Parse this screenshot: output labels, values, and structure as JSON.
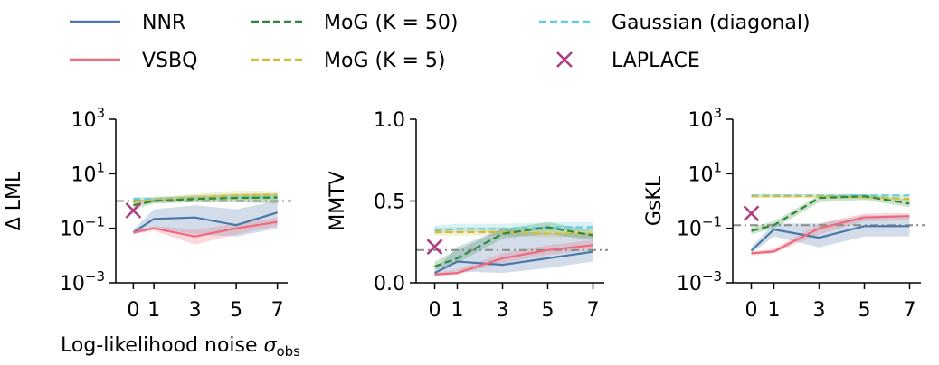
{
  "figure": {
    "xlabel_main": "Log-likelihood noise ",
    "xlabel_sigma": "σ",
    "xlabel_sub": "obs"
  },
  "colors": {
    "NNR": "#4a78a8",
    "VSBQ": "#ee6a7e",
    "MoG50": "#2e8a38",
    "MoG5": "#d0bd3a",
    "Gaussian": "#62cde0",
    "LAPLACE": "#b03c80",
    "reference": "#8a8a8a"
  },
  "legend": [
    {
      "key": "NNR",
      "label": "NNR",
      "style": "solid"
    },
    {
      "key": "VSBQ",
      "label": "VSBQ",
      "style": "solid"
    },
    {
      "key": "MoG50",
      "label": "MoG (K = 50)",
      "style": "dashed"
    },
    {
      "key": "MoG5",
      "label": "MoG (K = 5)",
      "style": "dashed"
    },
    {
      "key": "Gaussian",
      "label": "Gaussian (diagonal)",
      "style": "dashed"
    },
    {
      "key": "LAPLACE",
      "label": "LAPLACE",
      "style": "marker"
    }
  ],
  "chart_data": [
    {
      "type": "line",
      "ylabel": "Δ LML",
      "yscale": "log",
      "ylim": [
        0.001,
        1000
      ],
      "yticks": [
        {
          "v": 0.001,
          "base": "10",
          "exp": "−3"
        },
        {
          "v": 0.1,
          "base": "10",
          "exp": "−1"
        },
        {
          "v": 10,
          "base": "10",
          "exp": "1"
        },
        {
          "v": 1000,
          "base": "10",
          "exp": "3"
        }
      ],
      "xlim": [
        -0.5,
        7.5
      ],
      "xticks": [
        "0",
        "1",
        "3",
        "5",
        "7"
      ],
      "x": [
        0,
        1,
        3,
        5,
        7
      ],
      "reference_line": 1.0,
      "laplace": 0.45,
      "series": [
        {
          "key": "NNR",
          "values": [
            0.07,
            0.22,
            0.25,
            0.13,
            0.38
          ],
          "band_low": [
            0.06,
            0.1,
            0.06,
            0.05,
            0.1
          ],
          "band_high": [
            0.09,
            0.5,
            0.7,
            0.5,
            1.0
          ]
        },
        {
          "key": "VSBQ",
          "values": [
            0.07,
            0.1,
            0.05,
            0.1,
            0.17
          ],
          "band_low": [
            0.06,
            0.08,
            0.025,
            0.06,
            0.12
          ],
          "band_high": [
            0.08,
            0.12,
            0.09,
            0.15,
            0.25
          ]
        },
        {
          "key": "MoG50",
          "values": [
            0.7,
            1.0,
            1.2,
            1.3,
            1.35
          ],
          "band_low": [
            0.5,
            0.8,
            0.9,
            0.9,
            0.8
          ],
          "band_high": [
            1.0,
            1.3,
            1.6,
            1.8,
            1.9
          ]
        },
        {
          "key": "MoG5",
          "values": [
            0.9,
            1.1,
            1.3,
            1.6,
            1.7
          ],
          "band_low": [
            0.7,
            0.9,
            1.0,
            1.1,
            1.1
          ],
          "band_high": [
            1.2,
            1.4,
            1.8,
            2.4,
            2.3
          ]
        },
        {
          "key": "Gaussian",
          "values": [
            1.2,
            1.2,
            1.3,
            1.4,
            1.4
          ],
          "band_low": [
            1.0,
            1.0,
            1.1,
            1.2,
            1.2
          ],
          "band_high": [
            1.4,
            1.4,
            1.5,
            1.6,
            1.6
          ]
        }
      ]
    },
    {
      "type": "line",
      "ylabel": "MMTV",
      "yscale": "linear",
      "ylim": [
        0.0,
        1.0
      ],
      "yticks": [
        {
          "v": 0.0,
          "label": "0.0"
        },
        {
          "v": 0.5,
          "label": "0.5"
        },
        {
          "v": 1.0,
          "label": "1.0"
        }
      ],
      "xlim": [
        -0.5,
        7.5
      ],
      "xticks": [
        "0",
        "1",
        "3",
        "5",
        "7"
      ],
      "x": [
        0,
        1,
        3,
        5,
        7
      ],
      "reference_line": 0.2,
      "laplace": 0.22,
      "series": [
        {
          "key": "NNR",
          "values": [
            0.06,
            0.13,
            0.11,
            0.15,
            0.19
          ],
          "band_low": [
            0.05,
            0.07,
            0.06,
            0.09,
            0.13
          ],
          "band_high": [
            0.08,
            0.22,
            0.33,
            0.3,
            0.3
          ]
        },
        {
          "key": "VSBQ",
          "values": [
            0.05,
            0.06,
            0.15,
            0.2,
            0.23
          ],
          "band_low": [
            0.04,
            0.05,
            0.12,
            0.17,
            0.2
          ],
          "band_high": [
            0.06,
            0.08,
            0.18,
            0.23,
            0.26
          ]
        },
        {
          "key": "MoG50",
          "values": [
            0.1,
            0.15,
            0.3,
            0.34,
            0.29
          ],
          "band_low": [
            0.08,
            0.12,
            0.27,
            0.3,
            0.26
          ],
          "band_high": [
            0.13,
            0.2,
            0.33,
            0.37,
            0.32
          ]
        },
        {
          "key": "MoG5",
          "values": [
            0.31,
            0.31,
            0.31,
            0.3,
            0.3
          ],
          "band_low": [
            0.29,
            0.29,
            0.29,
            0.28,
            0.28
          ],
          "band_high": [
            0.34,
            0.34,
            0.34,
            0.33,
            0.33
          ]
        },
        {
          "key": "Gaussian",
          "values": [
            0.32,
            0.33,
            0.33,
            0.34,
            0.34
          ],
          "band_low": [
            0.3,
            0.31,
            0.31,
            0.32,
            0.32
          ],
          "band_high": [
            0.35,
            0.36,
            0.36,
            0.37,
            0.37
          ]
        }
      ]
    },
    {
      "type": "line",
      "ylabel": "GsKL",
      "yscale": "log",
      "ylim": [
        0.001,
        1000
      ],
      "yticks": [
        {
          "v": 0.001,
          "base": "10",
          "exp": "−3"
        },
        {
          "v": 0.1,
          "base": "10",
          "exp": "−1"
        },
        {
          "v": 10,
          "base": "10",
          "exp": "1"
        },
        {
          "v": 1000,
          "base": "10",
          "exp": "3"
        }
      ],
      "xlim": [
        -0.5,
        7.5
      ],
      "xticks": [
        "0",
        "1",
        "3",
        "5",
        "7"
      ],
      "x": [
        0,
        1,
        3,
        5,
        7
      ],
      "reference_line": 0.13,
      "laplace": 0.35,
      "series": [
        {
          "key": "NNR",
          "values": [
            0.015,
            0.09,
            0.045,
            0.12,
            0.12
          ],
          "band_low": [
            0.012,
            0.05,
            0.02,
            0.05,
            0.05
          ],
          "band_high": [
            0.02,
            0.15,
            0.15,
            0.3,
            0.3
          ]
        },
        {
          "key": "VSBQ",
          "values": [
            0.012,
            0.014,
            0.1,
            0.25,
            0.28
          ],
          "band_low": [
            0.01,
            0.012,
            0.06,
            0.18,
            0.2
          ],
          "band_high": [
            0.014,
            0.018,
            0.15,
            0.35,
            0.36
          ]
        },
        {
          "key": "MoG50",
          "values": [
            0.08,
            0.13,
            1.3,
            1.5,
            0.8
          ],
          "band_low": [
            0.06,
            0.1,
            0.9,
            1.1,
            0.6
          ],
          "band_high": [
            0.11,
            0.18,
            1.6,
            1.8,
            1.1
          ]
        },
        {
          "key": "MoG5",
          "values": [
            1.5,
            1.5,
            1.5,
            1.4,
            1.2
          ],
          "band_low": [
            1.3,
            1.3,
            1.3,
            1.2,
            1.0
          ],
          "band_high": [
            1.7,
            1.7,
            1.7,
            1.6,
            1.4
          ]
        },
        {
          "key": "Gaussian",
          "values": [
            1.6,
            1.6,
            1.6,
            1.6,
            1.6
          ],
          "band_low": [
            1.4,
            1.4,
            1.4,
            1.4,
            1.4
          ],
          "band_high": [
            1.8,
            1.8,
            1.8,
            1.8,
            1.8
          ]
        }
      ]
    }
  ]
}
